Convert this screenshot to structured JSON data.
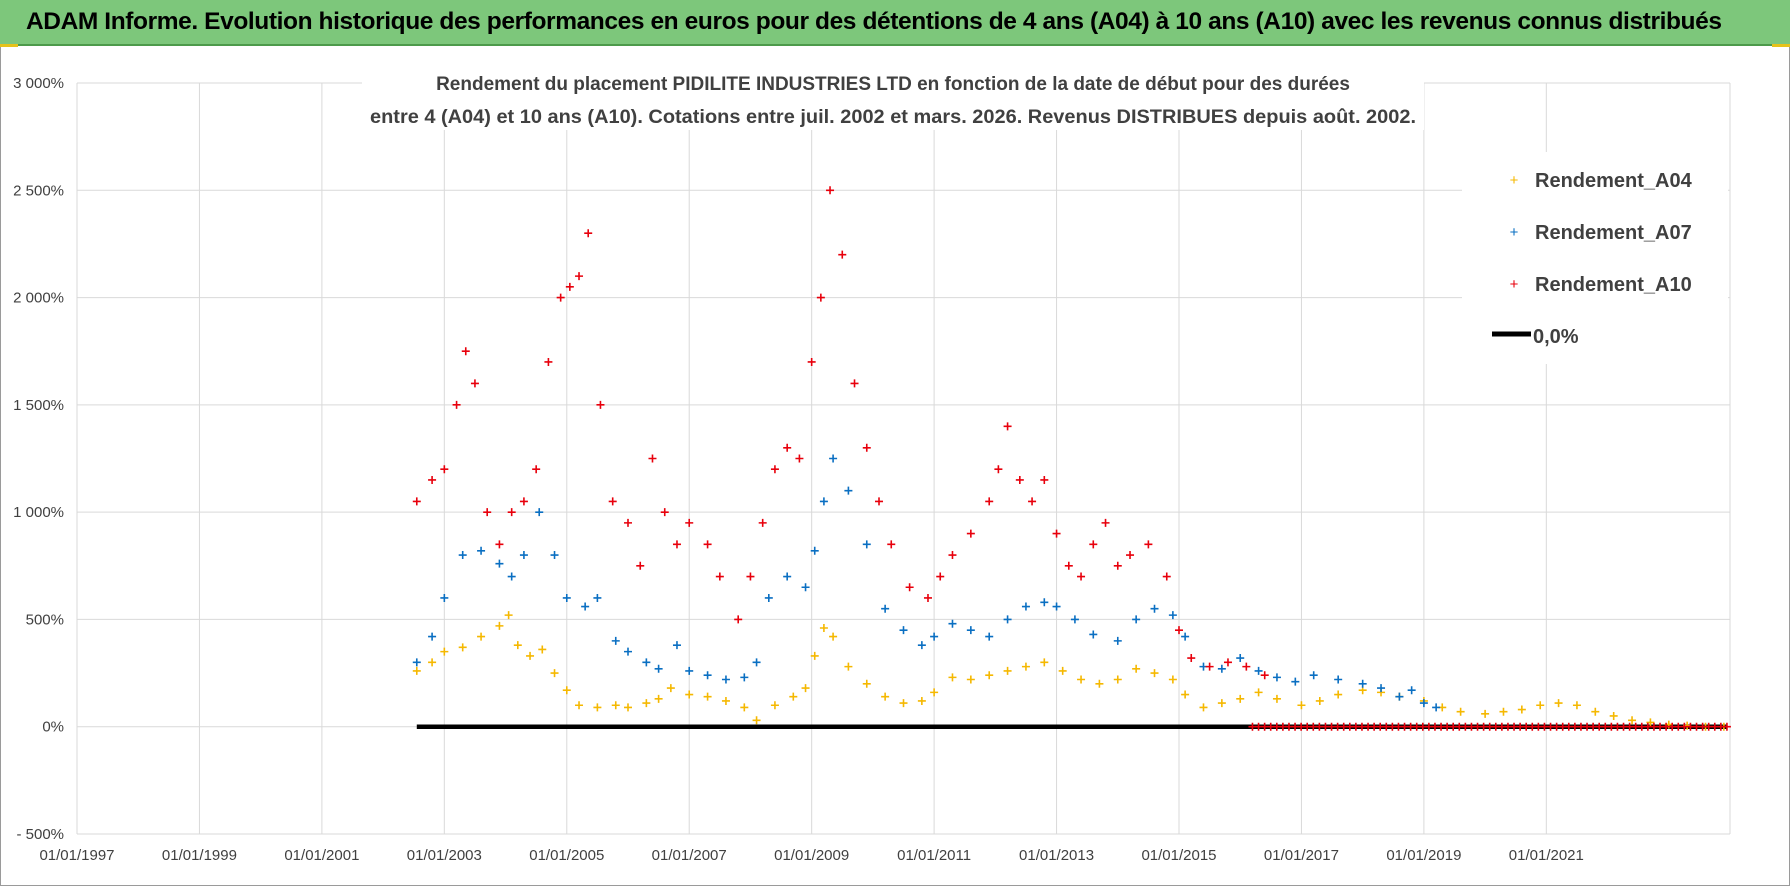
{
  "header": {
    "banner_title": "ADAM Informe. Evolution historique des performances en euros pour des détentions de 4 ans (A04) à 10 ans (A10) avec les revenus connus distribués"
  },
  "colors": {
    "banner_bg": "#7dc77b",
    "a04": "#f5b800",
    "a07": "#0a6fc2",
    "a10": "#e8000c",
    "zero": "#000000",
    "grid": "#d9d9d9"
  },
  "chart_data": {
    "type": "scatter",
    "title_lines": [
      "Rendement du placement PIDILITE INDUSTRIES LTD en fonction de la date de début pour des durées",
      "entre 4 (A04) et 10 ans (A10).  Cotations entre juil. 2002 et mars. 2026. Revenus DISTRIBUES depuis août. 2002."
    ],
    "ylabel": "",
    "xlabel": "",
    "ylim": [
      -500,
      3000
    ],
    "xlim": [
      1997.0,
      2024.0
    ],
    "y_ticks": [
      -500,
      0,
      500,
      1000,
      1500,
      2000,
      2500,
      3000
    ],
    "y_tick_labels": [
      "- 500%",
      "0%",
      "500%",
      "1 000%",
      "1 500%",
      "2 000%",
      "2 500%",
      "3 000%"
    ],
    "x_ticks": [
      1997,
      1999,
      2001,
      2003,
      2005,
      2007,
      2009,
      2011,
      2013,
      2015,
      2017,
      2019,
      2021
    ],
    "x_tick_labels": [
      "01/01/1997",
      "01/01/1999",
      "01/01/2001",
      "01/01/2003",
      "01/01/2005",
      "01/01/2007",
      "01/01/2009",
      "01/01/2011",
      "01/01/2013",
      "01/01/2015",
      "01/01/2017",
      "01/01/2019",
      "01/01/2021"
    ],
    "legend": {
      "placement": "top-right",
      "entries": [
        "Rendement_A04",
        "Rendement_A07",
        "Rendement_A10",
        "0,0%"
      ]
    },
    "series": [
      {
        "name": "Rendement_A04",
        "marker": "+",
        "x": [
          2002.55,
          2002.8,
          2003.0,
          2003.3,
          2003.6,
          2003.9,
          2004.05,
          2004.2,
          2004.4,
          2004.6,
          2004.8,
          2005.0,
          2005.2,
          2005.5,
          2005.8,
          2006.0,
          2006.3,
          2006.5,
          2006.7,
          2007.0,
          2007.3,
          2007.6,
          2007.9,
          2008.1,
          2008.4,
          2008.7,
          2008.9,
          2009.05,
          2009.2,
          2009.35,
          2009.6,
          2009.9,
          2010.2,
          2010.5,
          2010.8,
          2011.0,
          2011.3,
          2011.6,
          2011.9,
          2012.2,
          2012.5,
          2012.8,
          2013.1,
          2013.4,
          2013.7,
          2014.0,
          2014.3,
          2014.6,
          2014.9,
          2015.1,
          2015.4,
          2015.7,
          2016.0,
          2016.3,
          2016.6,
          2017.0,
          2017.3,
          2017.6,
          2018.0,
          2018.3,
          2018.6,
          2019.0,
          2019.3,
          2019.6,
          2020.0,
          2020.3,
          2020.6,
          2020.9,
          2021.2,
          2021.5,
          2021.8,
          2022.1,
          2022.4,
          2022.7,
          2023.0,
          2023.3,
          2023.6,
          2023.9
        ],
        "values": [
          260,
          300,
          350,
          370,
          420,
          470,
          520,
          380,
          330,
          360,
          250,
          170,
          100,
          90,
          100,
          90,
          110,
          130,
          180,
          150,
          140,
          120,
          90,
          30,
          100,
          140,
          180,
          330,
          460,
          420,
          280,
          200,
          140,
          110,
          120,
          160,
          230,
          220,
          240,
          260,
          280,
          300,
          260,
          220,
          200,
          220,
          270,
          250,
          220,
          150,
          90,
          110,
          130,
          160,
          130,
          100,
          120,
          150,
          170,
          160,
          140,
          120,
          90,
          70,
          60,
          70,
          80,
          100,
          110,
          100,
          70,
          50,
          30,
          20,
          10,
          5,
          0,
          0
        ]
      },
      {
        "name": "Rendement_A07",
        "marker": "+",
        "x": [
          2002.55,
          2002.8,
          2003.0,
          2003.3,
          2003.6,
          2003.9,
          2004.1,
          2004.3,
          2004.55,
          2004.8,
          2005.0,
          2005.3,
          2005.5,
          2005.8,
          2006.0,
          2006.3,
          2006.5,
          2006.8,
          2007.0,
          2007.3,
          2007.6,
          2007.9,
          2008.1,
          2008.3,
          2008.6,
          2008.9,
          2009.05,
          2009.2,
          2009.35,
          2009.6,
          2009.9,
          2010.2,
          2010.5,
          2010.8,
          2011.0,
          2011.3,
          2011.6,
          2011.9,
          2012.2,
          2012.5,
          2012.8,
          2013.0,
          2013.3,
          2013.6,
          2014.0,
          2014.3,
          2014.6,
          2014.9,
          2015.1,
          2015.4,
          2015.7,
          2016.0,
          2016.3,
          2016.6,
          2016.9,
          2017.2,
          2017.6,
          2018.0,
          2018.3,
          2018.6,
          2018.8,
          2019.0,
          2019.2
        ],
        "values": [
          300,
          420,
          600,
          800,
          820,
          760,
          700,
          800,
          1000,
          800,
          600,
          560,
          600,
          400,
          350,
          300,
          270,
          380,
          260,
          240,
          220,
          230,
          300,
          600,
          700,
          650,
          820,
          1050,
          1250,
          1100,
          850,
          550,
          450,
          380,
          420,
          480,
          450,
          420,
          500,
          560,
          580,
          560,
          500,
          430,
          400,
          500,
          550,
          520,
          420,
          280,
          270,
          320,
          260,
          230,
          210,
          240,
          220,
          200,
          180,
          140,
          170,
          110,
          90
        ]
      },
      {
        "name": "Rendement_A10",
        "marker": "+",
        "x": [
          2002.55,
          2002.8,
          2003.0,
          2003.2,
          2003.35,
          2003.5,
          2003.7,
          2003.9,
          2004.1,
          2004.3,
          2004.5,
          2004.7,
          2004.9,
          2005.05,
          2005.2,
          2005.35,
          2005.55,
          2005.75,
          2006.0,
          2006.2,
          2006.4,
          2006.6,
          2006.8,
          2007.0,
          2007.3,
          2007.5,
          2007.8,
          2008.0,
          2008.2,
          2008.4,
          2008.6,
          2008.8,
          2009.0,
          2009.15,
          2009.3,
          2009.5,
          2009.7,
          2009.9,
          2010.1,
          2010.3,
          2010.6,
          2010.9,
          2011.1,
          2011.3,
          2011.6,
          2011.9,
          2012.05,
          2012.2,
          2012.4,
          2012.6,
          2012.8,
          2013.0,
          2013.2,
          2013.4,
          2013.6,
          2013.8,
          2014.0,
          2014.2,
          2014.5,
          2014.8,
          2015.0,
          2015.2,
          2015.5,
          2015.8,
          2016.1,
          2016.4
        ],
        "values": [
          1050,
          1150,
          1200,
          1500,
          1750,
          1600,
          1000,
          850,
          1000,
          1050,
          1200,
          1700,
          2000,
          2050,
          2100,
          2300,
          1500,
          1050,
          950,
          750,
          1250,
          1000,
          850,
          950,
          850,
          700,
          500,
          700,
          950,
          1200,
          1300,
          1250,
          1700,
          2000,
          2500,
          2200,
          1600,
          1300,
          1050,
          850,
          650,
          600,
          700,
          800,
          900,
          1050,
          1200,
          1400,
          1150,
          1050,
          1150,
          900,
          750,
          700,
          850,
          950,
          750,
          800,
          850,
          700,
          450,
          320,
          280,
          300,
          280,
          240
        ]
      },
      {
        "name": "0,0%",
        "type": "line",
        "x": [
          2002.55,
          2023.95
        ],
        "values": [
          0,
          0
        ]
      }
    ],
    "flat_zero_markers_a10": {
      "from": 2016.2,
      "to": 2023.95,
      "value": 0
    }
  }
}
